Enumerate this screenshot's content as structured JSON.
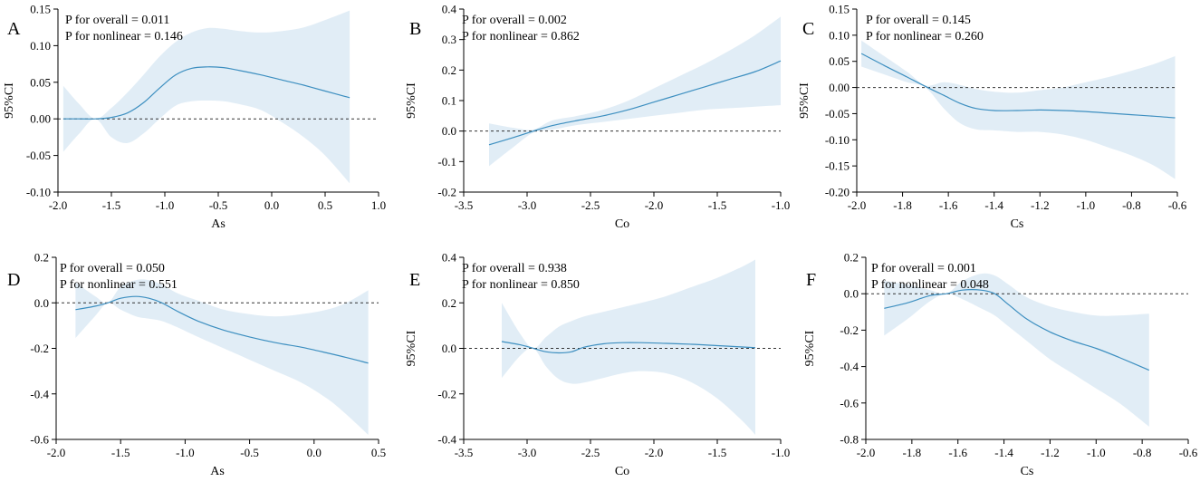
{
  "colors": {
    "line": "#3d8fc0",
    "band": "#dceaf5",
    "reference": "#333333"
  },
  "chart_data": [
    {
      "type": "line",
      "letter": "A",
      "xlabel": "As",
      "ylabel": "95%CI",
      "xlim": [
        -2.0,
        1.0
      ],
      "ylim": [
        -0.1,
        0.15
      ],
      "xticks": [
        "-2.0",
        "-1.5",
        "-1.0",
        "-0.5",
        "0.0",
        "0.5",
        "1.0"
      ],
      "yticks": [
        "-0.10",
        "-0.05",
        "0.00",
        "0.05",
        "0.10",
        "0.15"
      ],
      "xtick_values": [
        -2.0,
        -1.5,
        -1.0,
        -0.5,
        0.0,
        0.5,
        1.0
      ],
      "ytick_values": [
        -0.1,
        -0.05,
        0.0,
        0.05,
        0.1,
        0.15
      ],
      "reference_y": 0,
      "p_overall": "P for overall = 0.011",
      "p_nonlinear": "P for nonlinear = 0.146",
      "series": [
        {
          "name": "fit",
          "x": [
            -1.95,
            -1.8,
            -1.65,
            -1.5,
            -1.35,
            -1.2,
            -1.05,
            -0.9,
            -0.75,
            -0.6,
            -0.45,
            -0.3,
            -0.1,
            0.1,
            0.3,
            0.5,
            0.73
          ],
          "y": [
            0.0,
            0.0,
            0.0,
            0.002,
            0.008,
            0.022,
            0.042,
            0.06,
            0.069,
            0.071,
            0.07,
            0.066,
            0.06,
            0.053,
            0.046,
            0.038,
            0.029
          ],
          "lower": [
            -0.045,
            -0.02,
            0.0,
            -0.025,
            -0.033,
            -0.02,
            0.0,
            0.018,
            0.024,
            0.025,
            0.024,
            0.02,
            0.012,
            -0.005,
            -0.025,
            -0.05,
            -0.088
          ],
          "upper": [
            0.045,
            0.02,
            0.0,
            0.015,
            0.036,
            0.06,
            0.085,
            0.105,
            0.118,
            0.124,
            0.123,
            0.12,
            0.118,
            0.12,
            0.125,
            0.135,
            0.148
          ]
        }
      ]
    },
    {
      "type": "line",
      "letter": "B",
      "xlabel": "Co",
      "ylabel": "95%CI",
      "xlim": [
        -3.5,
        -1.0
      ],
      "ylim": [
        -0.2,
        0.4
      ],
      "xticks": [
        "-3.5",
        "-3.0",
        "-2.5",
        "-2.0",
        "-1.5",
        "-1.0"
      ],
      "yticks": [
        "-0.2",
        "-0.1",
        "0.0",
        "0.1",
        "0.2",
        "0.3",
        "0.4"
      ],
      "xtick_values": [
        -3.5,
        -3.0,
        -2.5,
        -2.0,
        -1.5,
        -1.0
      ],
      "ytick_values": [
        -0.2,
        -0.1,
        0.0,
        0.1,
        0.2,
        0.3,
        0.4
      ],
      "reference_y": 0,
      "p_overall": "P for overall = 0.002",
      "p_nonlinear": "P for nonlinear = 0.862",
      "series": [
        {
          "name": "fit",
          "x": [
            -3.3,
            -3.1,
            -2.95,
            -2.8,
            -2.6,
            -2.4,
            -2.2,
            -2.0,
            -1.8,
            -1.6,
            -1.4,
            -1.2,
            -1.0
          ],
          "y": [
            -0.045,
            -0.02,
            0.0,
            0.018,
            0.035,
            0.05,
            0.07,
            0.095,
            0.12,
            0.145,
            0.17,
            0.195,
            0.23
          ],
          "lower": [
            -0.115,
            -0.05,
            -0.005,
            0.005,
            0.02,
            0.03,
            0.04,
            0.05,
            0.06,
            0.07,
            0.075,
            0.08,
            0.085
          ],
          "upper": [
            0.025,
            0.01,
            0.005,
            0.035,
            0.05,
            0.07,
            0.1,
            0.14,
            0.18,
            0.22,
            0.265,
            0.315,
            0.375
          ]
        }
      ]
    },
    {
      "type": "line",
      "letter": "C",
      "xlabel": "Cs",
      "ylabel": "95%CI",
      "xlim": [
        -2.0,
        -0.6
      ],
      "ylim": [
        -0.2,
        0.15
      ],
      "xticks": [
        "-2.0",
        "-1.8",
        "-1.6",
        "-1.4",
        "-1.2",
        "-1.0",
        "-0.8",
        "-0.6"
      ],
      "yticks": [
        "-0.20",
        "-0.15",
        "-0.10",
        "-0.05",
        "0.00",
        "0.05",
        "0.10",
        "0.15"
      ],
      "xtick_values": [
        -2.0,
        -1.8,
        -1.6,
        -1.4,
        -1.2,
        -1.0,
        -0.8,
        -0.6
      ],
      "ytick_values": [
        -0.2,
        -0.15,
        -0.1,
        -0.05,
        0.0,
        0.05,
        0.1,
        0.15
      ],
      "reference_y": 0,
      "p_overall": "P for overall = 0.145",
      "p_nonlinear": "P for nonlinear = 0.260",
      "series": [
        {
          "name": "fit",
          "x": [
            -1.98,
            -1.88,
            -1.78,
            -1.7,
            -1.62,
            -1.55,
            -1.48,
            -1.4,
            -1.3,
            -1.2,
            -1.1,
            -1.0,
            -0.9,
            -0.8,
            -0.7,
            -0.61
          ],
          "y": [
            0.065,
            0.042,
            0.02,
            0.002,
            -0.015,
            -0.03,
            -0.04,
            -0.044,
            -0.044,
            -0.043,
            -0.044,
            -0.046,
            -0.049,
            -0.052,
            -0.055,
            -0.058
          ],
          "lower": [
            0.04,
            0.025,
            0.01,
            0.0,
            -0.04,
            -0.068,
            -0.08,
            -0.082,
            -0.085,
            -0.085,
            -0.09,
            -0.1,
            -0.115,
            -0.13,
            -0.15,
            -0.175
          ],
          "upper": [
            0.09,
            0.06,
            0.03,
            0.004,
            0.01,
            0.005,
            -0.003,
            -0.008,
            -0.01,
            -0.005,
            0.0,
            0.01,
            0.02,
            0.032,
            0.045,
            0.06
          ]
        }
      ]
    },
    {
      "type": "line",
      "letter": "D",
      "xlabel": "As",
      "ylabel": "",
      "xlim": [
        -2.0,
        0.5
      ],
      "ylim": [
        -0.6,
        0.2
      ],
      "xticks": [
        "-2.0",
        "-1.5",
        "-1.0",
        "-0.5",
        "0.0",
        "0.5"
      ],
      "yticks": [
        "-0.6",
        "-0.4",
        "-0.2",
        "0.0",
        "0.2"
      ],
      "xtick_values": [
        -2.0,
        -1.5,
        -1.0,
        -0.5,
        0.0,
        0.5
      ],
      "ytick_values": [
        -0.6,
        -0.4,
        -0.2,
        0.0,
        0.2
      ],
      "reference_y": 0,
      "p_overall": "P for overall = 0.050",
      "p_nonlinear": "P for nonlinear = 0.551",
      "series": [
        {
          "name": "fit",
          "x": [
            -1.85,
            -1.7,
            -1.6,
            -1.5,
            -1.38,
            -1.28,
            -1.18,
            -1.05,
            -0.9,
            -0.7,
            -0.5,
            -0.3,
            -0.1,
            0.1,
            0.25,
            0.42
          ],
          "y": [
            -0.03,
            -0.015,
            0.0,
            0.02,
            0.028,
            0.02,
            0.0,
            -0.04,
            -0.08,
            -0.12,
            -0.15,
            -0.175,
            -0.195,
            -0.22,
            -0.24,
            -0.265
          ],
          "lower": [
            -0.155,
            -0.06,
            0.0,
            -0.03,
            -0.06,
            -0.07,
            -0.08,
            -0.11,
            -0.15,
            -0.2,
            -0.25,
            -0.3,
            -0.35,
            -0.42,
            -0.49,
            -0.58
          ],
          "upper": [
            0.09,
            0.03,
            0.0,
            0.07,
            0.1,
            0.1,
            0.08,
            0.04,
            0.01,
            -0.03,
            -0.05,
            -0.06,
            -0.05,
            -0.03,
            0.0,
            0.055
          ]
        }
      ]
    },
    {
      "type": "line",
      "letter": "E",
      "xlabel": "Co",
      "ylabel": "95%CI",
      "xlim": [
        -3.5,
        -1.0
      ],
      "ylim": [
        -0.4,
        0.4
      ],
      "xticks": [
        "-3.5",
        "-3.0",
        "-2.5",
        "-2.0",
        "-1.5",
        "-1.0"
      ],
      "yticks": [
        "-0.4",
        "-0.2",
        "0.0",
        "0.2",
        "0.4"
      ],
      "xtick_values": [
        -3.5,
        -3.0,
        -2.5,
        -2.0,
        -1.5,
        -1.0
      ],
      "ytick_values": [
        -0.4,
        -0.2,
        0.0,
        0.2,
        0.4
      ],
      "reference_y": 0,
      "p_overall": "P for overall = 0.938",
      "p_nonlinear": "P for nonlinear = 0.850",
      "series": [
        {
          "name": "fit",
          "x": [
            -3.2,
            -3.05,
            -2.95,
            -2.85,
            -2.75,
            -2.65,
            -2.55,
            -2.4,
            -2.25,
            -2.1,
            -1.9,
            -1.7,
            -1.5,
            -1.3,
            -1.2
          ],
          "y": [
            0.03,
            0.015,
            0.0,
            -0.015,
            -0.02,
            -0.015,
            0.005,
            0.02,
            0.025,
            0.025,
            0.022,
            0.018,
            0.012,
            0.006,
            0.003
          ],
          "lower": [
            -0.13,
            -0.03,
            0.0,
            -0.08,
            -0.135,
            -0.155,
            -0.15,
            -0.13,
            -0.11,
            -0.1,
            -0.11,
            -0.15,
            -0.22,
            -0.32,
            -0.38
          ],
          "upper": [
            0.2,
            0.06,
            0.0,
            0.05,
            0.095,
            0.12,
            0.14,
            0.16,
            0.18,
            0.2,
            0.23,
            0.27,
            0.31,
            0.36,
            0.39
          ]
        }
      ]
    },
    {
      "type": "line",
      "letter": "F",
      "xlabel": "Cs",
      "ylabel": "95%CI",
      "xlim": [
        -2.0,
        -0.6
      ],
      "ylim": [
        -0.8,
        0.2
      ],
      "xticks": [
        "-2.0",
        "-1.8",
        "-1.6",
        "-1.4",
        "-1.2",
        "-1.0",
        "-0.8",
        "-0.6"
      ],
      "yticks": [
        "-0.8",
        "-0.6",
        "-0.4",
        "-0.2",
        "0.0",
        "0.2"
      ],
      "xtick_values": [
        -2.0,
        -1.8,
        -1.6,
        -1.4,
        -1.2,
        -1.0,
        -0.8,
        -0.6
      ],
      "ytick_values": [
        -0.8,
        -0.6,
        -0.4,
        -0.2,
        0.0,
        0.2
      ],
      "reference_y": 0,
      "p_overall": "P for overall = 0.001",
      "p_nonlinear": "P for nonlinear = 0.048",
      "series": [
        {
          "name": "fit",
          "x": [
            -1.92,
            -1.82,
            -1.72,
            -1.65,
            -1.58,
            -1.5,
            -1.44,
            -1.38,
            -1.3,
            -1.2,
            -1.1,
            -1.0,
            -0.9,
            -0.77
          ],
          "y": [
            -0.08,
            -0.05,
            -0.01,
            0.0,
            0.02,
            0.02,
            0.0,
            -0.06,
            -0.14,
            -0.21,
            -0.26,
            -0.3,
            -0.35,
            -0.42
          ],
          "lower": [
            -0.23,
            -0.14,
            -0.04,
            0.0,
            -0.03,
            -0.08,
            -0.12,
            -0.18,
            -0.26,
            -0.36,
            -0.44,
            -0.52,
            -0.6,
            -0.73
          ],
          "upper": [
            0.07,
            0.05,
            0.02,
            0.0,
            0.07,
            0.11,
            0.1,
            0.05,
            -0.02,
            -0.07,
            -0.1,
            -0.12,
            -0.12,
            -0.11
          ]
        }
      ]
    }
  ]
}
